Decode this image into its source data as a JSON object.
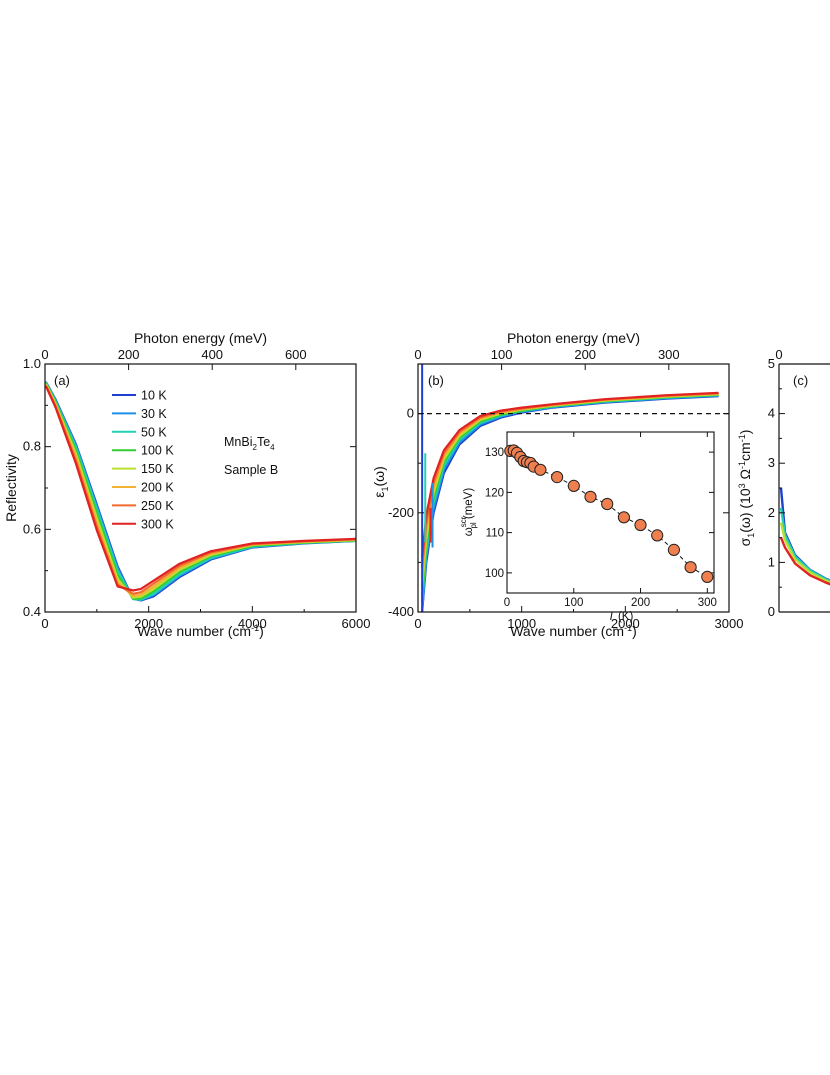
{
  "chart_data": [
    {
      "panel": "(a)",
      "type": "line",
      "xlabel": "Wave number (cm",
      "xlabel_sup": "-1",
      "xlabel_end": ")",
      "x2label": "Photon energy (meV)",
      "ylabel": "Reflectivity",
      "xlim": [
        0,
        6000
      ],
      "ylim": [
        0.4,
        1.0
      ],
      "x2lim": [
        0,
        744
      ],
      "x_ticks": [
        "0",
        "2000",
        "4000",
        "6000"
      ],
      "x2_ticks": [
        "0",
        "200",
        "400",
        "600"
      ],
      "y_ticks": [
        "0.4",
        "0.6",
        "0.8",
        "1.0"
      ],
      "annotation": {
        "line1_a": "MnBi",
        "line1_sub1": "2",
        "line1_b": "Te",
        "line1_sub2": "4",
        "line2": "Sample B"
      },
      "series": [
        {
          "name": "10 K",
          "color": "#1f3fd1",
          "x": [
            25,
            200,
            600,
            1000,
            1400,
            1700,
            1850,
            2100,
            2600,
            3200,
            4000,
            5000,
            6000
          ],
          "y": [
            0.955,
            0.915,
            0.805,
            0.66,
            0.51,
            0.432,
            0.428,
            0.438,
            0.485,
            0.527,
            0.556,
            0.566,
            0.572
          ]
        },
        {
          "name": "30 K",
          "color": "#1e90e6",
          "x": [
            25,
            200,
            600,
            1000,
            1400,
            1700,
            1850,
            2100,
            2600,
            3200,
            4000,
            5000,
            6000
          ],
          "y": [
            0.954,
            0.913,
            0.802,
            0.656,
            0.506,
            0.432,
            0.429,
            0.441,
            0.488,
            0.529,
            0.557,
            0.567,
            0.572
          ]
        },
        {
          "name": "50 K",
          "color": "#21d1b4",
          "x": [
            25,
            200,
            600,
            1000,
            1400,
            1700,
            1850,
            2100,
            2600,
            3200,
            4000,
            5000,
            6000
          ],
          "y": [
            0.953,
            0.911,
            0.798,
            0.65,
            0.5,
            0.431,
            0.43,
            0.444,
            0.491,
            0.531,
            0.558,
            0.567,
            0.573
          ]
        },
        {
          "name": "100 K",
          "color": "#33cc33",
          "x": [
            25,
            200,
            600,
            1000,
            1400,
            1700,
            1850,
            2100,
            2600,
            3200,
            4000,
            5000,
            6000
          ],
          "y": [
            0.952,
            0.908,
            0.79,
            0.64,
            0.49,
            0.432,
            0.433,
            0.45,
            0.497,
            0.535,
            0.56,
            0.568,
            0.573
          ]
        },
        {
          "name": "150 K",
          "color": "#b9e02e",
          "x": [
            25,
            200,
            600,
            1000,
            1400,
            1700,
            1850,
            2100,
            2600,
            3200,
            4000,
            5000,
            6000
          ],
          "y": [
            0.95,
            0.905,
            0.782,
            0.628,
            0.48,
            0.435,
            0.437,
            0.456,
            0.502,
            0.538,
            0.562,
            0.569,
            0.574
          ]
        },
        {
          "name": "200 K",
          "color": "#f2b233",
          "x": [
            25,
            200,
            600,
            1000,
            1400,
            1700,
            1850,
            2100,
            2600,
            3200,
            4000,
            5000,
            6000
          ],
          "y": [
            0.948,
            0.902,
            0.774,
            0.617,
            0.472,
            0.439,
            0.442,
            0.462,
            0.507,
            0.541,
            0.563,
            0.57,
            0.575
          ]
        },
        {
          "name": "250 K",
          "color": "#f26a2e",
          "x": [
            25,
            200,
            600,
            1000,
            1400,
            1700,
            1850,
            2100,
            2600,
            3200,
            4000,
            5000,
            6000
          ],
          "y": [
            0.946,
            0.899,
            0.766,
            0.607,
            0.466,
            0.444,
            0.448,
            0.469,
            0.512,
            0.544,
            0.564,
            0.571,
            0.576
          ]
        },
        {
          "name": "300 K",
          "color": "#e02222",
          "x": [
            25,
            200,
            600,
            1000,
            1400,
            1700,
            1850,
            2100,
            2600,
            3200,
            4000,
            5000,
            6000
          ],
          "y": [
            0.944,
            0.896,
            0.758,
            0.598,
            0.462,
            0.452,
            0.456,
            0.476,
            0.517,
            0.547,
            0.566,
            0.572,
            0.577
          ]
        }
      ]
    },
    {
      "panel": "(b)",
      "type": "line",
      "xlabel": "Wave number (cm",
      "xlabel_sup": "-1",
      "xlabel_end": ")",
      "x2label": "Photon energy (meV)",
      "ylabel": "ε",
      "ylabel_sub": "1",
      "ylabel_end": "(ω)",
      "xlim": [
        0,
        3000
      ],
      "ylim": [
        -400,
        100
      ],
      "x2lim": [
        0,
        372
      ],
      "x_ticks": [
        "0",
        "1000",
        "2000",
        "3000"
      ],
      "x2_ticks": [
        "0",
        "100",
        "200",
        "300"
      ],
      "y_ticks": [
        "-400",
        "-200",
        "0"
      ],
      "series": [
        {
          "name": "10 K",
          "color": "#1f3fd1",
          "x": [
            40,
            80,
            150,
            250,
            400,
            600,
            800,
            1000,
            1300,
            1800,
            2400,
            2900
          ],
          "y": [
            -400,
            -300,
            -200,
            -120,
            -62,
            -25,
            -8,
            2,
            12,
            22,
            30,
            35
          ]
        },
        {
          "name": "30 K",
          "color": "#1e90e6",
          "x": [
            40,
            80,
            150,
            250,
            400,
            600,
            800,
            1000,
            1300,
            1800,
            2400,
            2900
          ],
          "y": [
            -400,
            -290,
            -192,
            -113,
            -58,
            -22,
            -6,
            4,
            13,
            23,
            31,
            36
          ]
        },
        {
          "name": "50 K",
          "color": "#21d1b4",
          "x": [
            40,
            80,
            150,
            250,
            400,
            600,
            800,
            1000,
            1300,
            1800,
            2400,
            2900
          ],
          "y": [
            -380,
            -280,
            -180,
            -105,
            -53,
            -19,
            -4,
            5,
            14,
            24,
            32,
            37
          ]
        },
        {
          "name": "100 K",
          "color": "#33cc33",
          "x": [
            40,
            80,
            150,
            250,
            400,
            600,
            800,
            1000,
            1300,
            1800,
            2400,
            2900
          ],
          "y": [
            -370,
            -265,
            -170,
            -98,
            -49,
            -16,
            -2,
            6,
            15,
            25,
            33,
            38
          ]
        },
        {
          "name": "150 K",
          "color": "#b9e02e",
          "x": [
            40,
            80,
            150,
            250,
            400,
            600,
            800,
            1000,
            1300,
            1800,
            2400,
            2900
          ],
          "y": [
            -350,
            -252,
            -160,
            -92,
            -45,
            -13,
            0,
            8,
            16,
            26,
            34,
            39
          ]
        },
        {
          "name": "200 K",
          "color": "#f2b233",
          "x": [
            40,
            80,
            150,
            250,
            400,
            600,
            800,
            1000,
            1300,
            1800,
            2400,
            2900
          ],
          "y": [
            -330,
            -238,
            -150,
            -86,
            -41,
            -10,
            2,
            9,
            17,
            27,
            35,
            40
          ]
        },
        {
          "name": "250 K",
          "color": "#f26a2e",
          "x": [
            40,
            80,
            150,
            250,
            400,
            600,
            800,
            1000,
            1300,
            1800,
            2400,
            2900
          ],
          "y": [
            -310,
            -222,
            -140,
            -80,
            -37,
            -8,
            4,
            10,
            18,
            28,
            36,
            41
          ]
        },
        {
          "name": "300 K",
          "color": "#e02222",
          "x": [
            40,
            80,
            150,
            250,
            400,
            600,
            800,
            1000,
            1300,
            1800,
            2400,
            2900
          ],
          "y": [
            -290,
            -205,
            -130,
            -74,
            -33,
            -5,
            6,
            12,
            19,
            29,
            37,
            42
          ]
        }
      ],
      "reference_line": {
        "y": 0,
        "style": "dashed"
      },
      "inset": {
        "type": "scatter",
        "xlabel": "T",
        "xlabel_end": " (K)",
        "ylabel": "ω",
        "ylabel_sup": "scr",
        "ylabel_sub": "pl",
        "ylabel_end": " (meV)",
        "xlim": [
          0,
          310
        ],
        "ylim": [
          95,
          135
        ],
        "x_ticks": [
          "0",
          "100",
          "200",
          "300"
        ],
        "y_ticks": [
          "100",
          "110",
          "120",
          "130"
        ],
        "marker_color": "#ef7f4f",
        "x": [
          5,
          10,
          15,
          20,
          25,
          30,
          35,
          40,
          50,
          75,
          100,
          125,
          150,
          175,
          200,
          225,
          250,
          275,
          300
        ],
        "y": [
          130.3,
          130.4,
          129.8,
          128.8,
          127.8,
          127.5,
          127.3,
          126.4,
          125.6,
          123.8,
          121.6,
          118.9,
          117.1,
          113.8,
          111.9,
          109.3,
          105.7,
          101.4,
          99.0
        ]
      }
    },
    {
      "panel": "(c)",
      "type": "line",
      "ylabel": "σ",
      "ylabel_sub": "1",
      "ylabel_mid": "(ω) (10",
      "ylabel_sup1": "3",
      "ylabel_tail": " Ω",
      "ylabel_sup2": "-1",
      "ylabel_cm": "cm",
      "ylabel_sup3": "-1",
      "ylabel_end": ")",
      "x2_ticks": [
        "0"
      ],
      "ylim": [
        0,
        5
      ],
      "y_ticks": [
        "0",
        "1",
        "2",
        "3",
        "4",
        "5"
      ],
      "series": [
        {
          "name": "10 K",
          "color": "#1f3fd1",
          "y": [
            2.5,
            1.6,
            1.15,
            0.85,
            0.68,
            0.55
          ]
        },
        {
          "name": "50 K",
          "color": "#21d1b4",
          "y": [
            2.1,
            1.55,
            1.12,
            0.84,
            0.67,
            0.54
          ]
        },
        {
          "name": "150 K",
          "color": "#b9e02e",
          "y": [
            1.8,
            1.45,
            1.06,
            0.8,
            0.64,
            0.52
          ]
        },
        {
          "name": "300 K",
          "color": "#e02222",
          "y": [
            1.5,
            1.3,
            0.98,
            0.74,
            0.6,
            0.48
          ]
        }
      ]
    }
  ]
}
